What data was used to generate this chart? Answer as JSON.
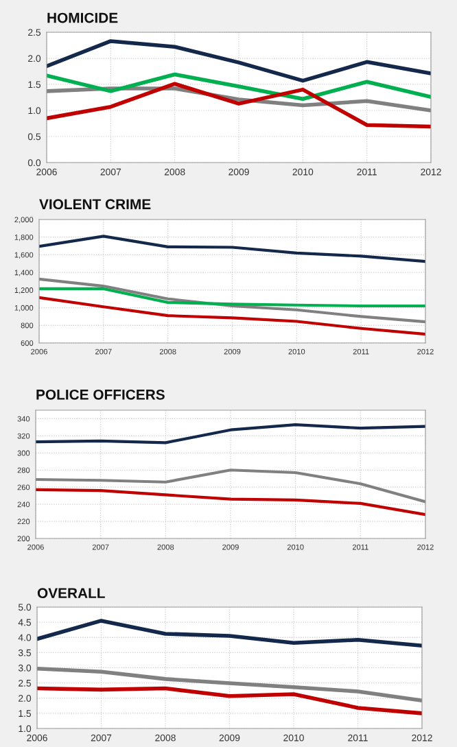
{
  "chart_data": [
    {
      "type": "line",
      "title": "HOMICIDE",
      "x": [
        2006,
        2007,
        2008,
        2009,
        2010,
        2011,
        2012
      ],
      "xlim": [
        2006,
        2012
      ],
      "xticks": [
        2006,
        2007,
        2008,
        2009,
        2010,
        2011,
        2012
      ],
      "ylim": [
        0,
        2.5
      ],
      "yticks": [
        {
          "value": 0,
          "label": "0.0"
        },
        0.5,
        {
          "value": 1,
          "label": "1.0"
        },
        1.5,
        {
          "value": 2,
          "label": "2.0"
        },
        2.5
      ],
      "grid": true,
      "series": [
        {
          "color": "#14284b",
          "values": [
            1.85,
            2.33,
            2.22,
            1.92,
            1.57,
            1.93,
            1.71
          ]
        },
        {
          "color": "#808080",
          "values": [
            1.37,
            1.42,
            1.42,
            1.21,
            1.1,
            1.18,
            1.0
          ]
        },
        {
          "color": "#00b050",
          "values": [
            1.67,
            1.37,
            1.69,
            1.46,
            1.22,
            1.55,
            1.26
          ]
        },
        {
          "color": "#c00000",
          "values": [
            0.85,
            1.07,
            1.51,
            1.13,
            1.4,
            0.72,
            0.69
          ]
        }
      ]
    },
    {
      "type": "line",
      "title": "VIOLENT CRIME",
      "x": [
        2006,
        2007,
        2008,
        2009,
        2010,
        2011,
        2012
      ],
      "xlim": [
        2006,
        2012
      ],
      "xticks": [
        2006,
        2007,
        2008,
        2009,
        2010,
        2011,
        2012
      ],
      "ylim": [
        600,
        2000
      ],
      "yticks": [
        600,
        800,
        {
          "value": 1000,
          "label": "1,000"
        },
        {
          "value": 1200,
          "label": "1,200"
        },
        {
          "value": 1400,
          "label": "1,400"
        },
        {
          "value": 1600,
          "label": "1,600"
        },
        {
          "value": 1800,
          "label": "1,800"
        },
        {
          "value": 2000,
          "label": "2,000"
        }
      ],
      "grid": true,
      "series": [
        {
          "color": "#14284b",
          "values": [
            1695,
            1810,
            1690,
            1685,
            1620,
            1585,
            1525
          ]
        },
        {
          "color": "#808080",
          "values": [
            1325,
            1245,
            1100,
            1020,
            975,
            900,
            840
          ]
        },
        {
          "color": "#00b050",
          "values": [
            1215,
            1215,
            1060,
            1040,
            1030,
            1020,
            1020
          ]
        },
        {
          "color": "#c00000",
          "values": [
            1115,
            1010,
            910,
            885,
            845,
            765,
            700
          ]
        }
      ]
    },
    {
      "type": "line",
      "title": "POLICE OFFICERS",
      "x": [
        2006,
        2007,
        2008,
        2009,
        2010,
        2011,
        2012
      ],
      "xlim": [
        2006,
        2012
      ],
      "xticks": [
        2006,
        2007,
        2008,
        2009,
        2010,
        2011,
        2012
      ],
      "ylim": [
        200,
        350
      ],
      "yticks": [
        200,
        220,
        240,
        260,
        280,
        300,
        320,
        340
      ],
      "grid": true,
      "series": [
        {
          "color": "#14284b",
          "values": [
            313,
            314,
            312,
            327,
            333,
            329,
            331
          ]
        },
        {
          "color": "#808080",
          "values": [
            269,
            268,
            266,
            280,
            277,
            264,
            243
          ]
        },
        {
          "color": "#c00000",
          "values": [
            257,
            256,
            251,
            246,
            245,
            241,
            228
          ]
        }
      ]
    },
    {
      "type": "line",
      "title": "OVERALL",
      "x": [
        2006,
        2007,
        2008,
        2009,
        2010,
        2011,
        2012
      ],
      "xlim": [
        2006,
        2012
      ],
      "xticks": [
        2006,
        2007,
        2008,
        2009,
        2010,
        2011,
        2012
      ],
      "ylim": [
        1,
        5
      ],
      "yticks": [
        {
          "value": 1,
          "label": "1.0"
        },
        1.5,
        {
          "value": 2,
          "label": "2.0"
        },
        2.5,
        {
          "value": 3,
          "label": "3.0"
        },
        3.5,
        {
          "value": 4,
          "label": "4.0"
        },
        4.5,
        {
          "value": 5,
          "label": "5.0"
        }
      ],
      "grid": true,
      "series": [
        {
          "color": "#14284b",
          "values": [
            3.95,
            4.55,
            4.12,
            4.05,
            3.82,
            3.92,
            3.73
          ]
        },
        {
          "color": "#808080",
          "values": [
            2.97,
            2.87,
            2.63,
            2.49,
            2.36,
            2.22,
            1.92
          ]
        },
        {
          "color": "#c00000",
          "values": [
            2.32,
            2.28,
            2.32,
            2.07,
            2.13,
            1.68,
            1.5
          ]
        }
      ]
    }
  ]
}
